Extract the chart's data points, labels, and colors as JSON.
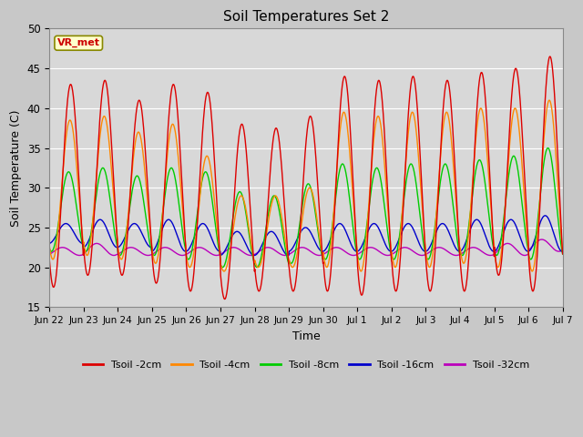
{
  "title": "Soil Temperatures Set 2",
  "xlabel": "Time",
  "ylabel": "Soil Temperature (C)",
  "ylim": [
    15,
    50
  ],
  "yticks": [
    15,
    20,
    25,
    30,
    35,
    40,
    45,
    50
  ],
  "fig_bg_color": "#c8c8c8",
  "plot_bg_color": "#d8d8d8",
  "legend_labels": [
    "Tsoil -2cm",
    "Tsoil -4cm",
    "Tsoil -8cm",
    "Tsoil -16cm",
    "Tsoil -32cm"
  ],
  "line_colors": [
    "#dd0000",
    "#ff8800",
    "#00cc00",
    "#0000cc",
    "#bb00bb"
  ],
  "annotation_text": "VR_met",
  "annotation_color": "#cc0000",
  "annotation_bg": "#ffffcc",
  "annotation_border": "#888800",
  "n_days": 15,
  "x_tick_labels": [
    "Jun 22",
    "Jun 23",
    "Jun 24",
    "Jun 25",
    "Jun 26",
    "Jun 27",
    "Jun 28",
    "Jun 29",
    "Jun 30",
    "Jul 1",
    "Jul 2",
    "Jul 3",
    "Jul 4",
    "Jul 5",
    "Jul 6",
    "Jul 7"
  ],
  "peak_2cm": [
    43.0,
    43.5,
    41.0,
    43.0,
    42.0,
    38.0,
    37.5,
    39.0,
    44.0,
    43.5,
    44.0,
    43.5,
    44.5,
    45.0,
    46.5
  ],
  "trough_2cm": [
    17.5,
    19.0,
    19.0,
    18.0,
    17.0,
    16.0,
    17.0,
    17.0,
    17.0,
    16.5,
    17.0,
    17.0,
    17.0,
    19.0,
    17.0
  ],
  "peak_4cm": [
    38.5,
    39.0,
    37.0,
    38.0,
    34.0,
    29.0,
    29.0,
    30.0,
    39.5,
    39.0,
    39.5,
    39.5,
    40.0,
    40.0,
    41.0
  ],
  "trough_4cm": [
    21.0,
    21.5,
    21.0,
    20.5,
    20.0,
    19.5,
    20.0,
    20.0,
    20.0,
    19.5,
    20.0,
    20.0,
    20.5,
    20.0,
    19.5
  ],
  "peak_8cm": [
    32.0,
    32.5,
    31.5,
    32.5,
    32.0,
    29.5,
    29.0,
    30.5,
    33.0,
    32.5,
    33.0,
    33.0,
    33.5,
    34.0,
    35.0
  ],
  "trough_8cm": [
    22.0,
    22.0,
    21.5,
    21.5,
    21.0,
    20.0,
    20.0,
    20.5,
    21.0,
    21.0,
    21.0,
    21.0,
    21.5,
    21.5,
    21.0
  ],
  "peak_16cm": [
    25.5,
    26.0,
    25.5,
    26.0,
    25.5,
    24.5,
    24.5,
    25.0,
    25.5,
    25.5,
    25.5,
    25.5,
    26.0,
    26.0,
    26.5
  ],
  "trough_16cm": [
    23.0,
    22.5,
    22.5,
    22.0,
    22.0,
    21.5,
    21.5,
    22.0,
    22.0,
    22.0,
    22.0,
    22.0,
    22.0,
    22.0,
    22.0
  ],
  "peak_32cm": [
    22.5,
    23.0,
    22.5,
    22.5,
    22.5,
    22.5,
    22.5,
    22.5,
    22.5,
    22.5,
    22.5,
    22.5,
    22.5,
    23.0,
    23.5
  ],
  "trough_32cm": [
    21.5,
    21.5,
    21.5,
    21.5,
    21.5,
    21.5,
    21.5,
    21.5,
    21.5,
    21.5,
    21.5,
    21.5,
    21.5,
    21.5,
    22.0
  ],
  "phase_2cm": 0.62,
  "phase_4cm": 0.6,
  "phase_8cm": 0.56,
  "phase_16cm": 0.48,
  "phase_32cm": 0.38
}
